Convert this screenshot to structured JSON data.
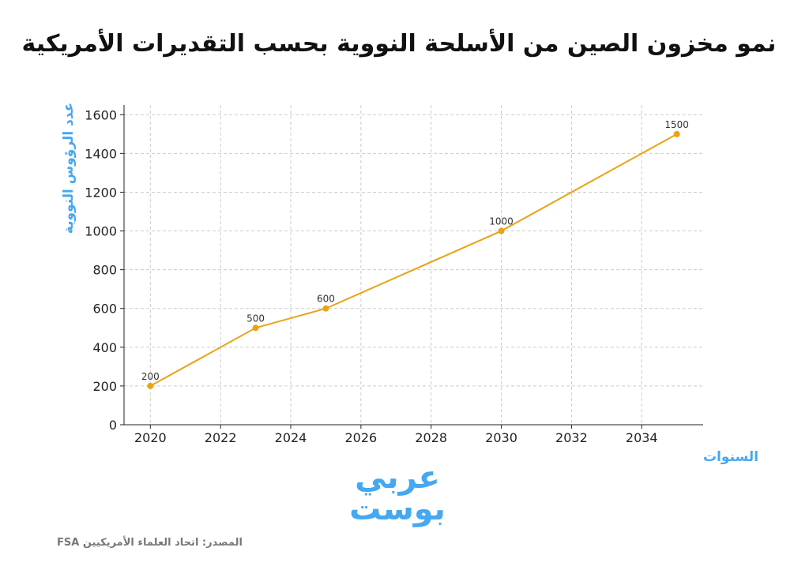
{
  "chart_data": {
    "type": "line",
    "title": "نمو مخزون الصين من الأسلحة النووية بحسب التقديرات الأمريكية",
    "xlabel": "السنوات",
    "ylabel": "عدد الرؤوس النووية",
    "x": [
      2020,
      2023,
      2025,
      2030,
      2035
    ],
    "values": [
      200,
      500,
      600,
      1000,
      1500
    ],
    "data_labels": [
      "200",
      "500",
      "600",
      "1000",
      "1500"
    ],
    "xticks": [
      2020,
      2022,
      2024,
      2026,
      2028,
      2030,
      2032,
      2034
    ],
    "yticks": [
      0,
      200,
      400,
      600,
      800,
      1000,
      1200,
      1400,
      1600
    ],
    "xlim": [
      2019.25,
      2035.75
    ],
    "ylim": [
      0,
      1650
    ],
    "grid": true,
    "line_color": "#e8a317",
    "label_color": "#45a8f0"
  },
  "logo": {
    "line1": "عربي",
    "line2": "بوست"
  },
  "source": "المصدر: اتحاد العلماء الأمريكيين FSA"
}
